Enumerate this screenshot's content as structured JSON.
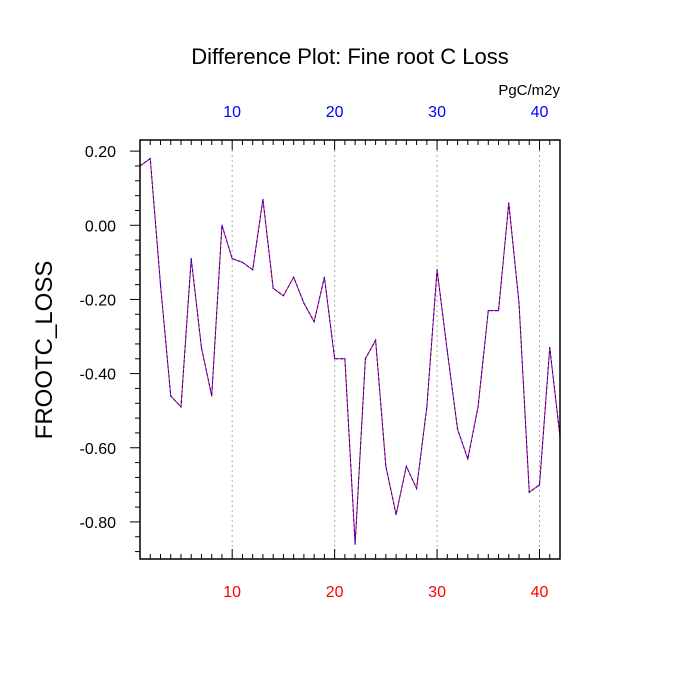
{
  "chart_data": {
    "type": "line",
    "title": "Difference Plot: Fine root C Loss",
    "units": "PgC/m2y",
    "ylabel": "FROOTC_LOSS",
    "xlabel": "",
    "xlim": [
      1,
      42
    ],
    "ylim": [
      -0.9,
      0.23
    ],
    "x_ticks": [
      10,
      20,
      30,
      40
    ],
    "x_tick_labels": [
      "10",
      "20",
      "30",
      "40"
    ],
    "y_ticks": [
      0.2,
      0.0,
      -0.2,
      -0.4,
      -0.6,
      -0.8
    ],
    "y_tick_labels": [
      "0.20",
      "0.00",
      "-0.20",
      "-0.40",
      "-0.60",
      "-0.80"
    ],
    "grid": "vertical dotted at x ticks",
    "colors": {
      "line_primary": "#ff0000",
      "line_secondary": "#0000ff",
      "bottom_tick_labels": "#ff0000",
      "top_tick_labels": "#0000ff",
      "grid": "#aaaaaa",
      "axis": "#000000"
    },
    "series": [
      {
        "name": "FROOTC_LOSS",
        "x": [
          1,
          2,
          3,
          4,
          5,
          6,
          7,
          8,
          9,
          10,
          11,
          12,
          13,
          14,
          15,
          16,
          17,
          18,
          19,
          20,
          21,
          22,
          23,
          24,
          25,
          26,
          27,
          28,
          29,
          30,
          31,
          32,
          33,
          34,
          35,
          36,
          37,
          38,
          39,
          40,
          41,
          42
        ],
        "values": [
          0.16,
          0.18,
          -0.16,
          -0.46,
          -0.49,
          -0.09,
          -0.33,
          -0.46,
          0.0,
          -0.09,
          -0.1,
          -0.12,
          0.07,
          -0.17,
          -0.19,
          -0.14,
          -0.21,
          -0.26,
          -0.14,
          -0.36,
          -0.36,
          -0.86,
          -0.36,
          -0.31,
          -0.65,
          -0.78,
          -0.65,
          -0.71,
          -0.49,
          -0.12,
          -0.34,
          -0.55,
          -0.63,
          -0.49,
          -0.23,
          -0.23,
          0.06,
          -0.21,
          -0.72,
          -0.7,
          -0.33,
          -0.57
        ]
      }
    ]
  }
}
